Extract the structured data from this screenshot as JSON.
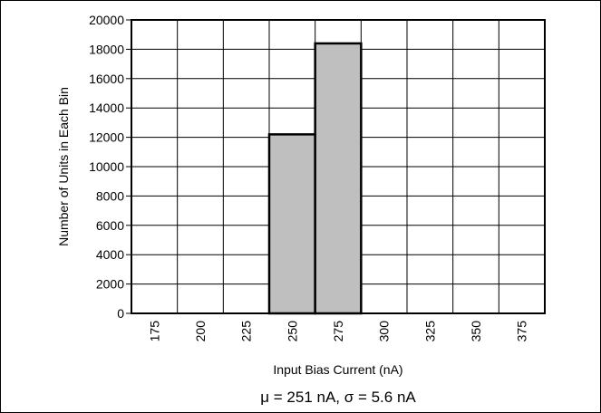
{
  "chart_data": {
    "type": "bar",
    "categories": [
      "175",
      "200",
      "225",
      "250",
      "275",
      "300",
      "325",
      "350",
      "375"
    ],
    "values": [
      0,
      0,
      0,
      12200,
      18400,
      0,
      0,
      0,
      0
    ],
    "xlabel": "Input Bias Current (nA)",
    "ylabel": "Number of Units in Each Bin",
    "ylim": [
      0,
      20000
    ],
    "yticks": [
      "0",
      "2000",
      "4000",
      "6000",
      "8000",
      "10000",
      "12000",
      "14000",
      "16000",
      "18000",
      "20000"
    ],
    "annotation": "μ = 251 nA, σ = 5.6 nA",
    "grid": true,
    "bar_color": "#bfbfbf",
    "edge_color": "#000000"
  }
}
